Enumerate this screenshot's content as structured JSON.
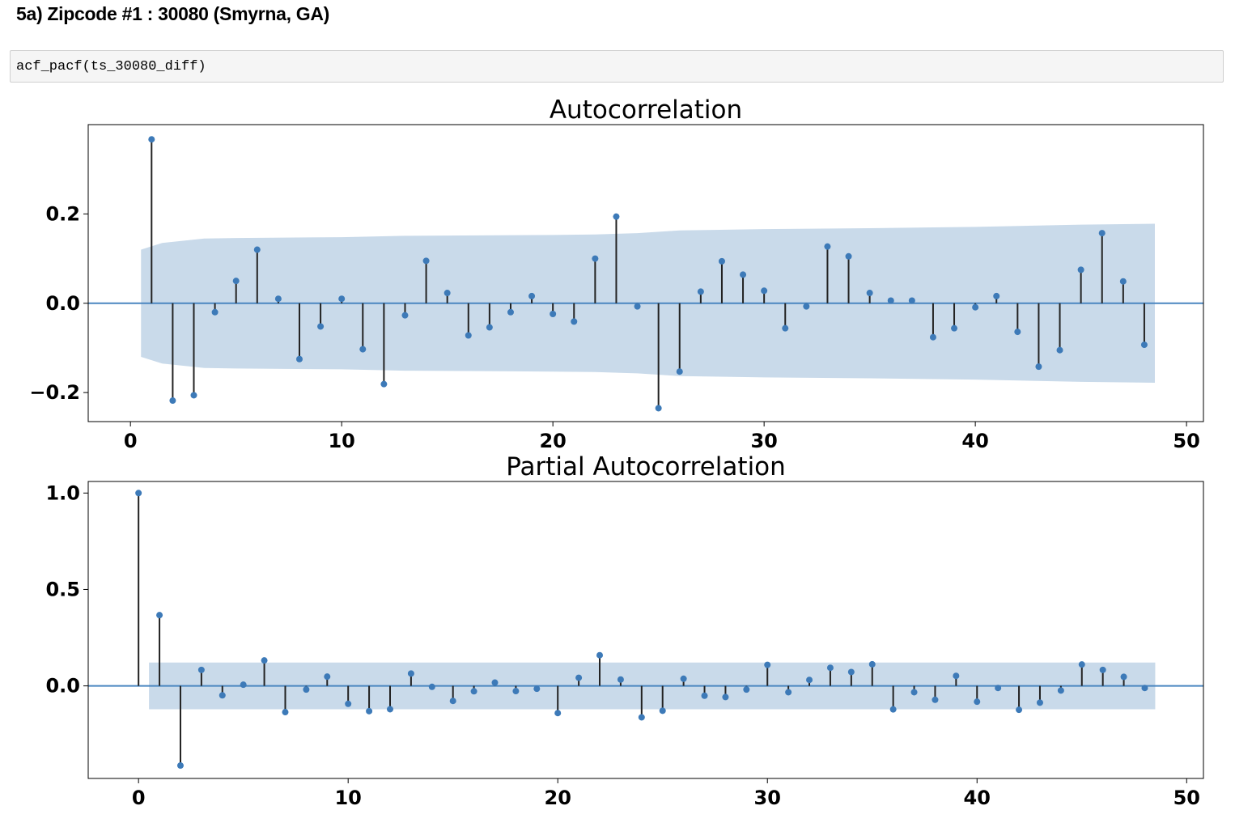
{
  "notebook": {
    "heading": "5a) Zipcode #1 : 30080 (Smyrna, GA)",
    "code": "acf_pacf(ts_30080_diff)"
  },
  "colors": {
    "marker": "#3d7ab8",
    "stem": "#222222",
    "zero_line": "#4a86c0",
    "confidence_band": "#c9daea"
  },
  "chart_data": [
    {
      "type": "stem",
      "title": "Autocorrelation",
      "xlabel": "",
      "ylabel": "",
      "xlim": [
        -2,
        50.8
      ],
      "ylim": [
        -0.265,
        0.4
      ],
      "xticks": [
        0,
        10,
        20,
        30,
        40,
        50
      ],
      "xtick_labels": [
        "0",
        "10",
        "20",
        "30",
        "40",
        "50"
      ],
      "yticks": [
        -0.2,
        0.0,
        0.2
      ],
      "ytick_labels": [
        "−0.2",
        "0.0",
        "0.2"
      ],
      "lags": [
        1,
        2,
        3,
        4,
        5,
        6,
        7,
        8,
        9,
        10,
        11,
        12,
        13,
        14,
        15,
        16,
        17,
        18,
        19,
        20,
        21,
        22,
        23,
        24,
        25,
        26,
        27,
        28,
        29,
        30,
        31,
        32,
        33,
        34,
        35,
        36,
        37,
        38,
        39,
        40,
        41,
        42,
        43,
        44,
        45,
        46,
        47,
        48
      ],
      "values": [
        0.367,
        -0.218,
        -0.206,
        -0.02,
        0.05,
        0.12,
        0.01,
        -0.125,
        -0.052,
        0.01,
        -0.103,
        -0.181,
        -0.027,
        0.095,
        0.023,
        -0.072,
        -0.054,
        -0.02,
        0.016,
        -0.024,
        -0.041,
        0.1,
        0.194,
        -0.007,
        -0.235,
        -0.153,
        0.026,
        0.094,
        0.064,
        0.028,
        -0.056,
        -0.007,
        0.127,
        0.105,
        0.023,
        0.006,
        0.006,
        -0.076,
        -0.056,
        -0.009,
        0.016,
        -0.064,
        -0.142,
        -0.105,
        0.075,
        0.157,
        0.049,
        -0.093
      ],
      "confidence_band": {
        "x": [
          0.5,
          1.5,
          2.5,
          3.5,
          5,
          10,
          13,
          20,
          22,
          24,
          26,
          30,
          35,
          40,
          45,
          48.5
        ],
        "upper": [
          0.12,
          0.135,
          0.14,
          0.145,
          0.146,
          0.148,
          0.151,
          0.153,
          0.154,
          0.157,
          0.163,
          0.166,
          0.168,
          0.171,
          0.176,
          0.178
        ]
      },
      "grid": false,
      "legend": "none"
    },
    {
      "type": "stem",
      "title": "Partial Autocorrelation",
      "xlabel": "",
      "ylabel": "",
      "xlim": [
        -2.4,
        50.8
      ],
      "ylim": [
        -0.48,
        1.06
      ],
      "xticks": [
        0,
        10,
        20,
        30,
        40,
        50
      ],
      "xtick_labels": [
        "0",
        "10",
        "20",
        "30",
        "40",
        "50"
      ],
      "yticks": [
        0.0,
        0.5,
        1.0
      ],
      "ytick_labels": [
        "0.0",
        "0.5",
        "1.0"
      ],
      "lags": [
        0,
        1,
        2,
        3,
        4,
        5,
        6,
        7,
        8,
        9,
        10,
        11,
        12,
        13,
        14,
        15,
        16,
        17,
        18,
        19,
        20,
        21,
        22,
        23,
        24,
        25,
        26,
        27,
        28,
        29,
        30,
        31,
        32,
        33,
        34,
        35,
        36,
        37,
        38,
        39,
        40,
        41,
        42,
        43,
        44,
        45,
        46,
        47,
        48
      ],
      "values": [
        1.0,
        0.367,
        -0.413,
        0.083,
        -0.049,
        0.006,
        0.132,
        -0.136,
        -0.019,
        0.048,
        -0.093,
        -0.131,
        -0.121,
        0.064,
        -0.005,
        -0.078,
        -0.028,
        0.017,
        -0.027,
        -0.015,
        -0.141,
        0.042,
        0.159,
        0.033,
        -0.163,
        -0.129,
        0.037,
        -0.051,
        -0.058,
        -0.019,
        0.109,
        -0.033,
        0.031,
        0.094,
        0.072,
        0.112,
        -0.122,
        -0.033,
        -0.072,
        0.052,
        -0.082,
        -0.011,
        -0.124,
        -0.087,
        -0.024,
        0.111,
        0.083,
        0.047,
        -0.011
      ],
      "confidence_band": {
        "x": [
          0.5,
          48.5
        ],
        "upper": [
          0.121,
          0.121
        ]
      },
      "grid": false,
      "legend": "none"
    }
  ]
}
